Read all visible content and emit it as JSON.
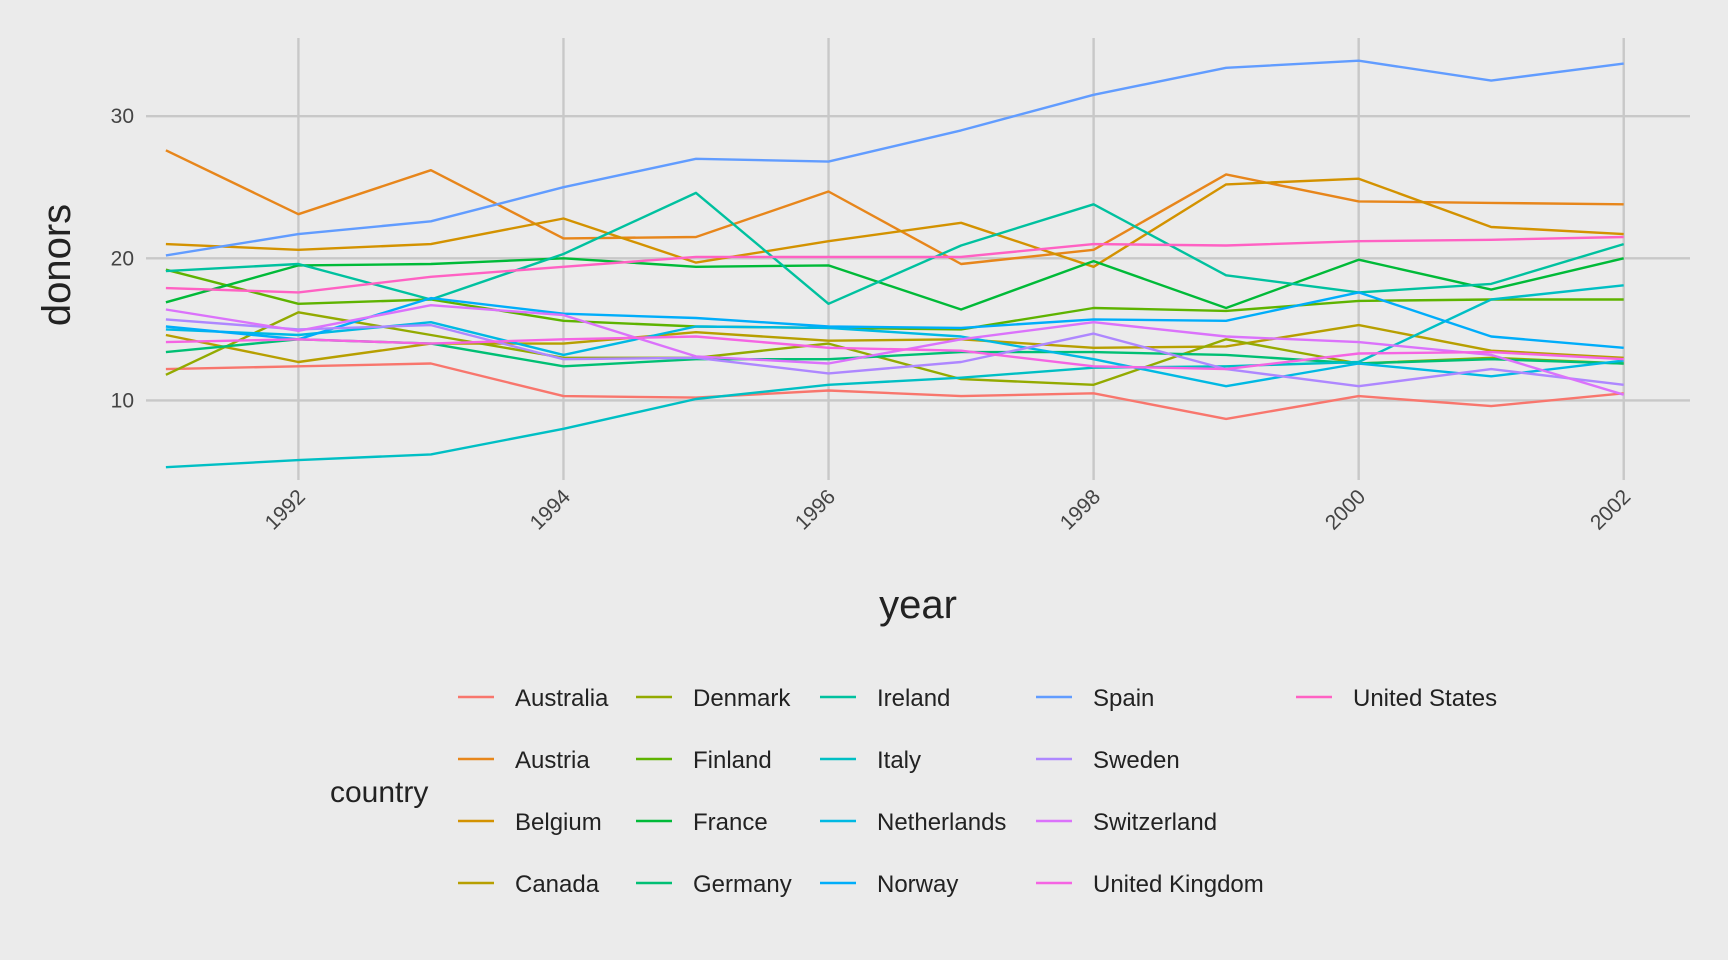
{
  "chart_data": {
    "type": "line",
    "xlabel": "year",
    "ylabel": "donors",
    "xlim": [
      1990.85,
      2002.5
    ],
    "ylim": [
      4.4,
      35.5
    ],
    "x_ticks": [
      1992,
      1994,
      1996,
      1998,
      2000,
      2002
    ],
    "x_tick_labels": [
      "1992",
      "1994",
      "1996",
      "1998",
      "2000",
      "2002"
    ],
    "y_ticks": [
      10,
      20,
      30
    ],
    "y_tick_labels": [
      "10",
      "20",
      "30"
    ],
    "grid": true,
    "legend_title": "country",
    "legend_position": "bottom",
    "background": "#ebebeb",
    "grid_color": "#c8c8c8",
    "x": [
      1991,
      1992,
      1993,
      1994,
      1995,
      1996,
      1997,
      1998,
      1999,
      2000,
      2001,
      2002
    ],
    "series": [
      {
        "name": "Australia",
        "color": "#f8766d",
        "values": [
          12.2,
          12.4,
          12.6,
          10.3,
          10.2,
          10.7,
          10.3,
          10.5,
          8.7,
          10.3,
          9.6,
          10.5
        ]
      },
      {
        "name": "Austria",
        "color": "#e7861b",
        "values": [
          27.6,
          23.1,
          26.2,
          21.4,
          21.5,
          24.7,
          19.6,
          20.6,
          25.9,
          24.0,
          23.9,
          23.8
        ]
      },
      {
        "name": "Belgium",
        "color": "#d39200",
        "values": [
          21.0,
          20.6,
          21.0,
          22.8,
          19.7,
          21.2,
          22.5,
          19.4,
          25.2,
          25.6,
          22.2,
          21.7
        ]
      },
      {
        "name": "Canada",
        "color": "#b79f00",
        "values": [
          14.6,
          12.7,
          14.0,
          14.0,
          14.8,
          14.2,
          14.3,
          13.7,
          13.8,
          15.3,
          13.5,
          13.0
        ]
      },
      {
        "name": "Denmark",
        "color": "#93aa00",
        "values": [
          11.8,
          16.2,
          14.6,
          13.0,
          13.0,
          14.0,
          11.5,
          11.1,
          14.3,
          12.6,
          13.0,
          12.6
        ]
      },
      {
        "name": "Finland",
        "color": "#5eb300",
        "values": [
          19.2,
          16.8,
          17.1,
          15.6,
          15.2,
          15.1,
          15.0,
          16.5,
          16.3,
          17.0,
          17.1,
          17.1
        ]
      },
      {
        "name": "France",
        "color": "#00ba38",
        "values": [
          16.9,
          19.5,
          19.6,
          20.0,
          19.4,
          19.5,
          16.4,
          19.8,
          16.5,
          19.9,
          17.8,
          20.0
        ]
      },
      {
        "name": "Germany",
        "color": "#00bf74",
        "values": [
          13.4,
          14.3,
          14.0,
          12.4,
          12.9,
          12.9,
          13.4,
          13.4,
          13.2,
          12.6,
          12.9,
          12.6
        ]
      },
      {
        "name": "Ireland",
        "color": "#00c19f",
        "values": [
          19.1,
          19.6,
          17.1,
          20.3,
          24.6,
          16.8,
          20.9,
          23.8,
          18.8,
          17.6,
          18.2,
          21.0
        ]
      },
      {
        "name": "Italy",
        "color": "#00bfc4",
        "values": [
          5.3,
          5.8,
          6.2,
          8.0,
          10.1,
          11.1,
          11.6,
          12.3,
          12.4,
          12.7,
          17.1,
          18.1
        ]
      },
      {
        "name": "Netherlands",
        "color": "#00b9e3",
        "values": [
          15.0,
          14.6,
          15.5,
          13.2,
          15.2,
          15.1,
          14.5,
          12.9,
          11.0,
          12.6,
          11.7,
          12.8
        ]
      },
      {
        "name": "Norway",
        "color": "#00adfa",
        "values": [
          15.2,
          14.3,
          17.2,
          16.1,
          15.8,
          15.2,
          15.1,
          15.7,
          15.6,
          17.6,
          14.5,
          13.7
        ]
      },
      {
        "name": "Spain",
        "color": "#619cff",
        "values": [
          20.2,
          21.7,
          22.6,
          25.0,
          27.0,
          26.8,
          29.0,
          31.5,
          33.4,
          33.9,
          32.5,
          33.7
        ]
      },
      {
        "name": "Sweden",
        "color": "#ae87ff",
        "values": [
          15.7,
          15.0,
          15.3,
          12.9,
          13.0,
          11.9,
          12.7,
          14.7,
          12.2,
          11.0,
          12.2,
          11.1
        ]
      },
      {
        "name": "Switzerland",
        "color": "#db72fb",
        "values": [
          16.4,
          14.9,
          16.7,
          16.0,
          13.1,
          12.6,
          14.3,
          15.5,
          14.5,
          14.1,
          13.2,
          10.4
        ]
      },
      {
        "name": "United Kingdom",
        "color": "#f564e3",
        "values": [
          14.1,
          14.3,
          14.0,
          14.3,
          14.5,
          13.7,
          13.5,
          12.4,
          12.2,
          13.3,
          13.4,
          12.9
        ]
      },
      {
        "name": "United States",
        "color": "#ff61c3",
        "values": [
          17.9,
          17.6,
          18.7,
          19.4,
          20.1,
          20.1,
          20.1,
          21.0,
          20.9,
          21.2,
          21.3,
          21.5
        ]
      }
    ]
  }
}
